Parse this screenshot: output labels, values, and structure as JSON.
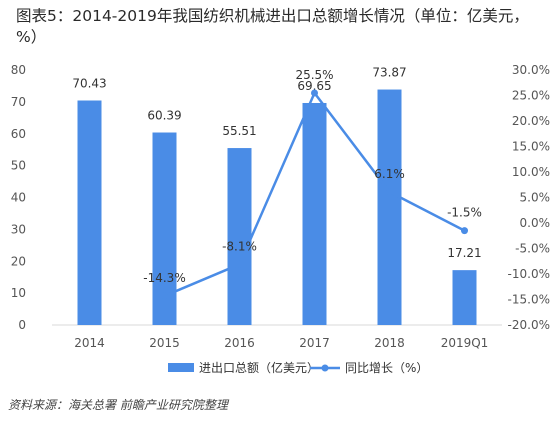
{
  "title": "图表5：2014-2019年我国纺织机械进出口总额增长情况（单位：亿美元，%）",
  "source": "资料来源：海关总署 前瞻产业研究院整理",
  "colors": {
    "bar": "#4a8ce6",
    "line": "#4a8ce6",
    "axis": "#d9d9d9"
  },
  "chart_data": {
    "type": "bar",
    "categories": [
      "2014",
      "2015",
      "2016",
      "2017",
      "2018",
      "2019Q1"
    ],
    "series": [
      {
        "name": "进出口总额（亿美元）",
        "type": "bar",
        "axis": "left",
        "values": [
          70.43,
          60.39,
          55.51,
          69.65,
          73.87,
          17.21
        ],
        "labels": [
          "70.43",
          "60.39",
          "55.51",
          "69.65",
          "73.87",
          "17.21"
        ]
      },
      {
        "name": "同比增长（%）",
        "type": "line",
        "axis": "right",
        "values": [
          null,
          -14.3,
          -8.1,
          25.5,
          6.1,
          -1.5
        ],
        "labels": [
          "",
          "-14.3%",
          "-8.1%",
          "25.5%",
          "6.1%",
          "-1.5%"
        ]
      }
    ],
    "y_left": {
      "min": 0,
      "max": 80,
      "ticks": [
        "0",
        "10",
        "20",
        "30",
        "40",
        "50",
        "60",
        "70",
        "80"
      ]
    },
    "y_right": {
      "min": -20,
      "max": 30,
      "ticks": [
        "-20.0%",
        "-15.0%",
        "-10.0%",
        "-5.0%",
        "0.0%",
        "5.0%",
        "10.0%",
        "15.0%",
        "20.0%",
        "25.0%",
        "30.0%"
      ]
    },
    "legend": "bottom",
    "grid": false
  }
}
